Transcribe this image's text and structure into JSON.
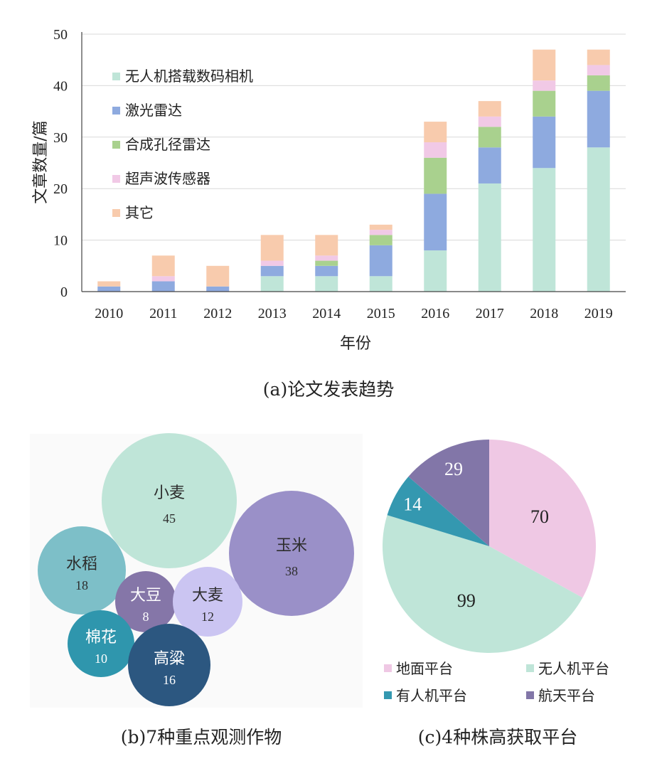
{
  "chart_data": [
    {
      "type": "bar",
      "stacked": true,
      "ylabel": "文章数量/篇",
      "xlabel": "年份",
      "caption": "(a)论文发表趋势",
      "ylim": [
        0,
        50
      ],
      "yticks": [
        "0",
        "10",
        "20",
        "30",
        "40",
        "50"
      ],
      "grid": true,
      "legend_position": "top-left",
      "categories": [
        "2010",
        "2011",
        "2012",
        "2013",
        "2014",
        "2015",
        "2016",
        "2017",
        "2018",
        "2019"
      ],
      "series": [
        {
          "name": "无人机搭载数码相机",
          "color": "#bfe5d8",
          "values": [
            0,
            0,
            0,
            3,
            3,
            3,
            8,
            21,
            24,
            28
          ]
        },
        {
          "name": "激光雷达",
          "color": "#8eaadf",
          "values": [
            1,
            2,
            1,
            2,
            2,
            6,
            11,
            7,
            10,
            11
          ]
        },
        {
          "name": "合成孔径雷达",
          "color": "#a9d18e",
          "values": [
            0,
            0,
            0,
            0,
            1,
            2,
            7,
            4,
            5,
            3
          ]
        },
        {
          "name": "超声波传感器",
          "color": "#f1c9e6",
          "values": [
            0,
            1,
            0,
            1,
            1,
            1,
            3,
            2,
            2,
            2
          ]
        },
        {
          "name": "其它",
          "color": "#f8cbad",
          "values": [
            1,
            4,
            4,
            5,
            4,
            1,
            4,
            3,
            6,
            3
          ]
        }
      ]
    },
    {
      "type": "bubble",
      "caption": "(b)7种重点观测作物",
      "items": [
        {
          "name": "小麦",
          "value": "45",
          "color": "#bfe5d8",
          "text_color": "#2d2d2d"
        },
        {
          "name": "玉米",
          "value": "38",
          "color": "#9a90c8",
          "text_color": "#2d2d2d"
        },
        {
          "name": "水稻",
          "value": "18",
          "color": "#7dbfc8",
          "text_color": "#2d2d2d"
        },
        {
          "name": "大豆",
          "value": "8",
          "color": "#8576a8",
          "text_color": "#ffffff"
        },
        {
          "name": "大麦",
          "value": "12",
          "color": "#cbc5f2",
          "text_color": "#2d2d2d"
        },
        {
          "name": "棉花",
          "value": "10",
          "color": "#2f96ad",
          "text_color": "#ffffff"
        },
        {
          "name": "高粱",
          "value": "16",
          "color": "#2c5780",
          "text_color": "#ffffff"
        }
      ]
    },
    {
      "type": "pie",
      "caption": "(c)4种株高获取平台",
      "legend_position": "bottom",
      "slices": [
        {
          "name": "地面平台",
          "value": 70,
          "label": "70",
          "color": "#efc8e4",
          "text_color": "#222222"
        },
        {
          "name": "无人机平台",
          "value": 99,
          "label": "99",
          "color": "#bfe5d8",
          "text_color": "#222222"
        },
        {
          "name": "有人机平台",
          "value": 14,
          "label": "14",
          "color": "#3498b0",
          "text_color": "#ffffff"
        },
        {
          "name": "航天平台",
          "value": 29,
          "label": "29",
          "color": "#8276a8",
          "text_color": "#ffffff"
        }
      ]
    }
  ]
}
